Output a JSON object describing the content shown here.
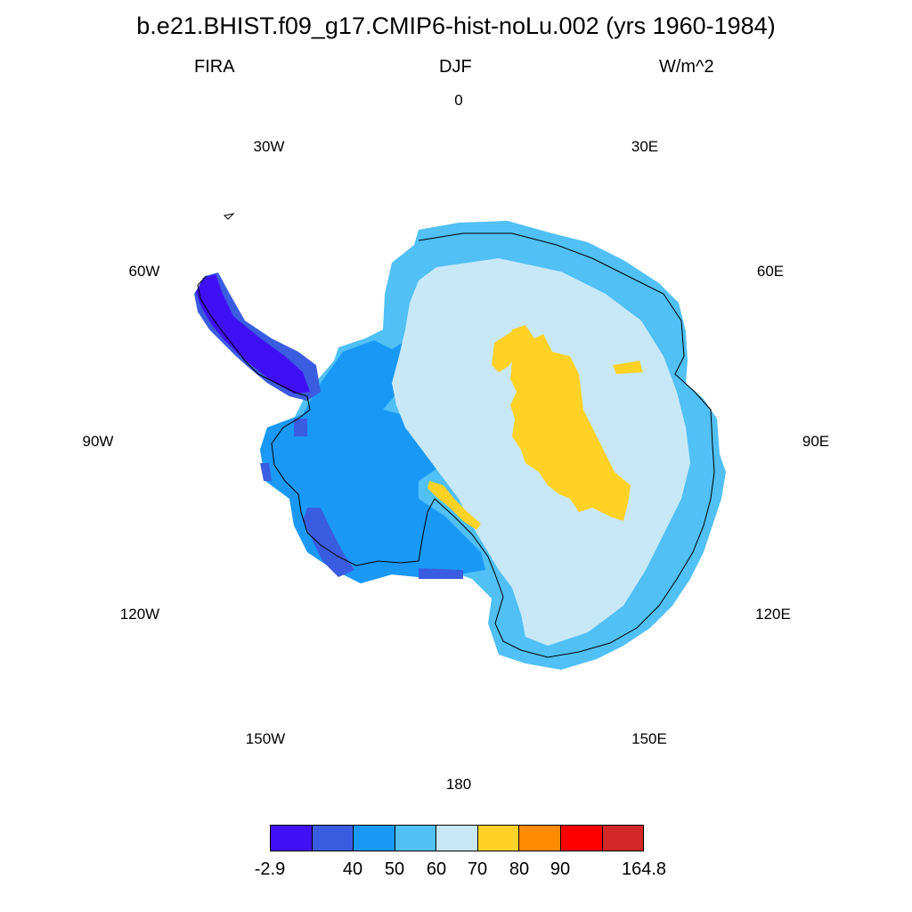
{
  "header": {
    "title": "b.e21.BHIST.f09_g17.CMIP6-hist-noLu.002 (yrs 1960-1984)",
    "variable": "FIRA",
    "season": "DJF",
    "units": "W/m^2"
  },
  "longitude_labels": {
    "l0": "0",
    "l30e": "30E",
    "l60e": "60E",
    "l90e": "90E",
    "l120e": "120E",
    "l150e": "150E",
    "l180": "180",
    "l150w": "150W",
    "l120w": "120W",
    "l90w": "90W",
    "l60w": "60W",
    "l30w": "30W"
  },
  "colorbar": {
    "colors": [
      "#4010f5",
      "#3a5ce0",
      "#1a98f5",
      "#50c0f5",
      "#c8e8f8",
      "#ffd225",
      "#ff8c00",
      "#ff0000",
      "#d42828"
    ],
    "labels": {
      "min": "-2.9",
      "b40": "40",
      "b50": "50",
      "b60": "60",
      "b70": "70",
      "b80": "80",
      "b90": "90",
      "max": "164.8"
    }
  },
  "map": {
    "projection": "south-polar stereographic",
    "region": "Antarctica",
    "palette": {
      "interior": "#c8e8f8",
      "plateau_high": "#ffd225",
      "coastal_mid": "#50c0f5",
      "coastal_low": "#1a98f5",
      "peninsula_low": "#3a5ce0",
      "peninsula_min": "#4010f5"
    }
  }
}
